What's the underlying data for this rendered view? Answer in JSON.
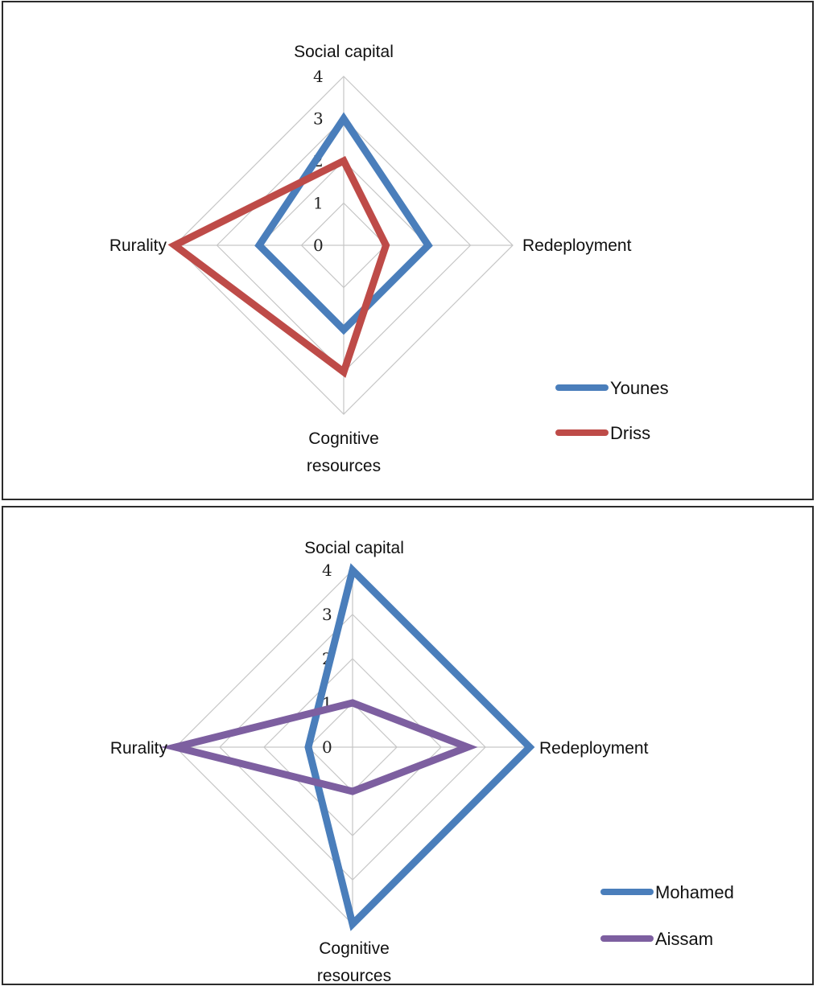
{
  "chart_data": [
    {
      "type": "radar",
      "axes": [
        "Social capital",
        "Redeployment",
        "Cognitive resources",
        "Rurality"
      ],
      "ticks": [
        "0",
        "1",
        "2",
        "3",
        "4"
      ],
      "rmax": 4,
      "grid": true,
      "legend_position": "bottom-right",
      "series": [
        {
          "name": "Younes",
          "values": [
            3,
            2,
            2,
            2
          ],
          "color": "#4a7ebb"
        },
        {
          "name": "Driss",
          "values": [
            2,
            1,
            3,
            4
          ],
          "color": "#be4b48"
        }
      ]
    },
    {
      "type": "radar",
      "axes": [
        "Social capital",
        "Redeployment",
        "Cognitive resources",
        "Rurality"
      ],
      "ticks": [
        "0",
        "1",
        "2",
        "3",
        "4"
      ],
      "rmax": 4,
      "grid": true,
      "legend_position": "bottom-right",
      "series": [
        {
          "name": "Mohamed",
          "values": [
            4,
            4,
            4,
            1
          ],
          "color": "#4a7ebb"
        },
        {
          "name": "Aissam",
          "values": [
            1,
            2.6,
            1,
            4
          ],
          "color": "#7d5fa0"
        }
      ]
    }
  ]
}
